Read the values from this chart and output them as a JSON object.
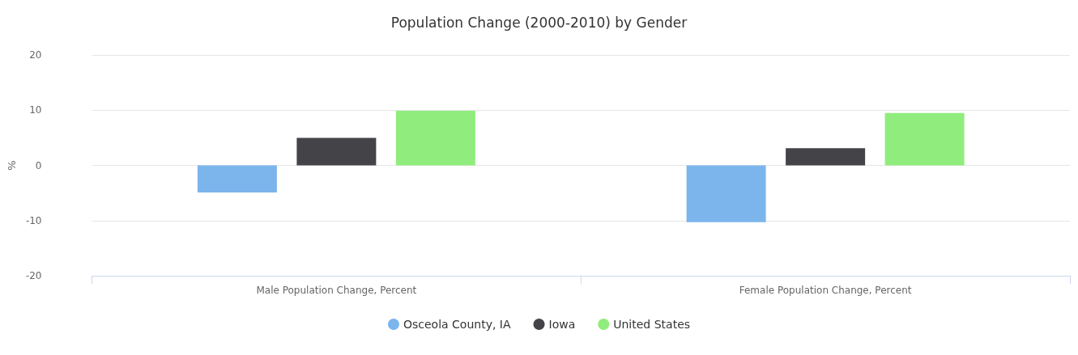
{
  "chart_data": {
    "type": "bar",
    "title": "Population Change (2000-2010) by Gender",
    "ylabel": "%",
    "categories": [
      "Male Population Change, Percent",
      "Female Population Change, Percent"
    ],
    "series": [
      {
        "name": "Osceola County, IA",
        "color": "#7cb5ec",
        "values": [
          -4.9,
          -10.3
        ]
      },
      {
        "name": "Iowa",
        "color": "#434348",
        "values": [
          5.0,
          3.1
        ]
      },
      {
        "name": "United States",
        "color": "#90ed7d",
        "values": [
          9.9,
          9.5
        ]
      }
    ],
    "ylim": [
      -20,
      20
    ],
    "yticks": [
      -20,
      -10,
      0,
      10,
      20
    ],
    "grid": "y",
    "legend": "bottom"
  }
}
